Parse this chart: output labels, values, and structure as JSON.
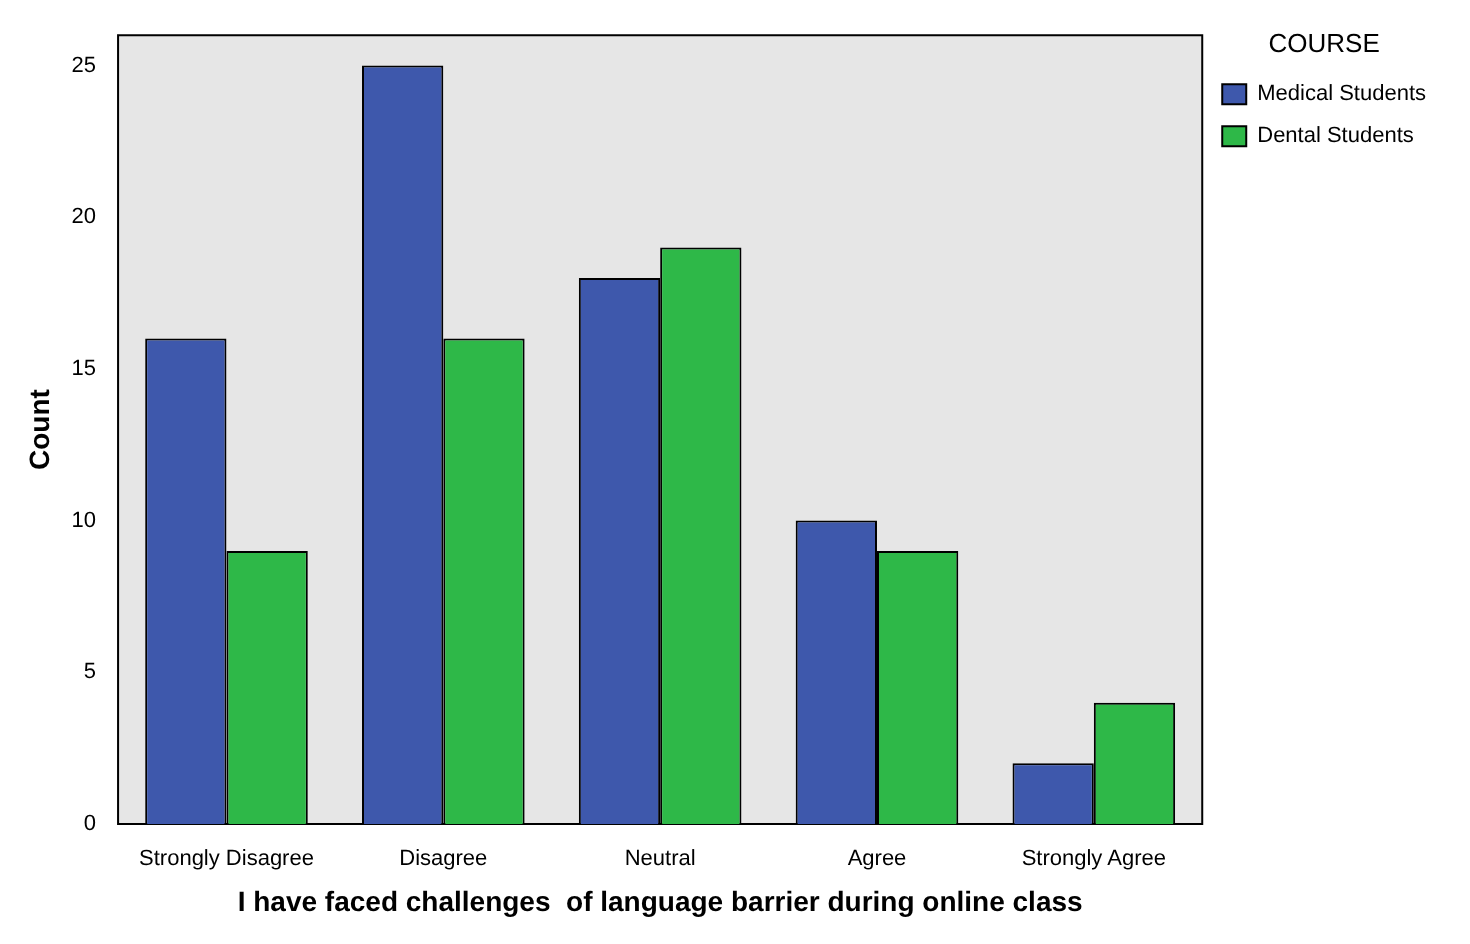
{
  "chart_data": {
    "type": "bar",
    "xlabel": "I have faced challenges  of language barrier during online class",
    "ylabel": "Count",
    "legend_title": "COURSE",
    "legend": "right",
    "categories": [
      "Strongly Disagree",
      "Disagree",
      "Neutral",
      "Agree",
      "Strongly Agree"
    ],
    "series": [
      {
        "name": "Medical Students",
        "color": "#3e58ac",
        "values": [
          16,
          25,
          18,
          10,
          2
        ]
      },
      {
        "name": "Dental Students",
        "color": "#2eb848",
        "values": [
          9,
          16,
          19,
          9,
          4
        ]
      }
    ],
    "ylim": [
      0,
      26
    ],
    "yticks": [
      0,
      5,
      10,
      15,
      20,
      25
    ],
    "grid": false
  }
}
